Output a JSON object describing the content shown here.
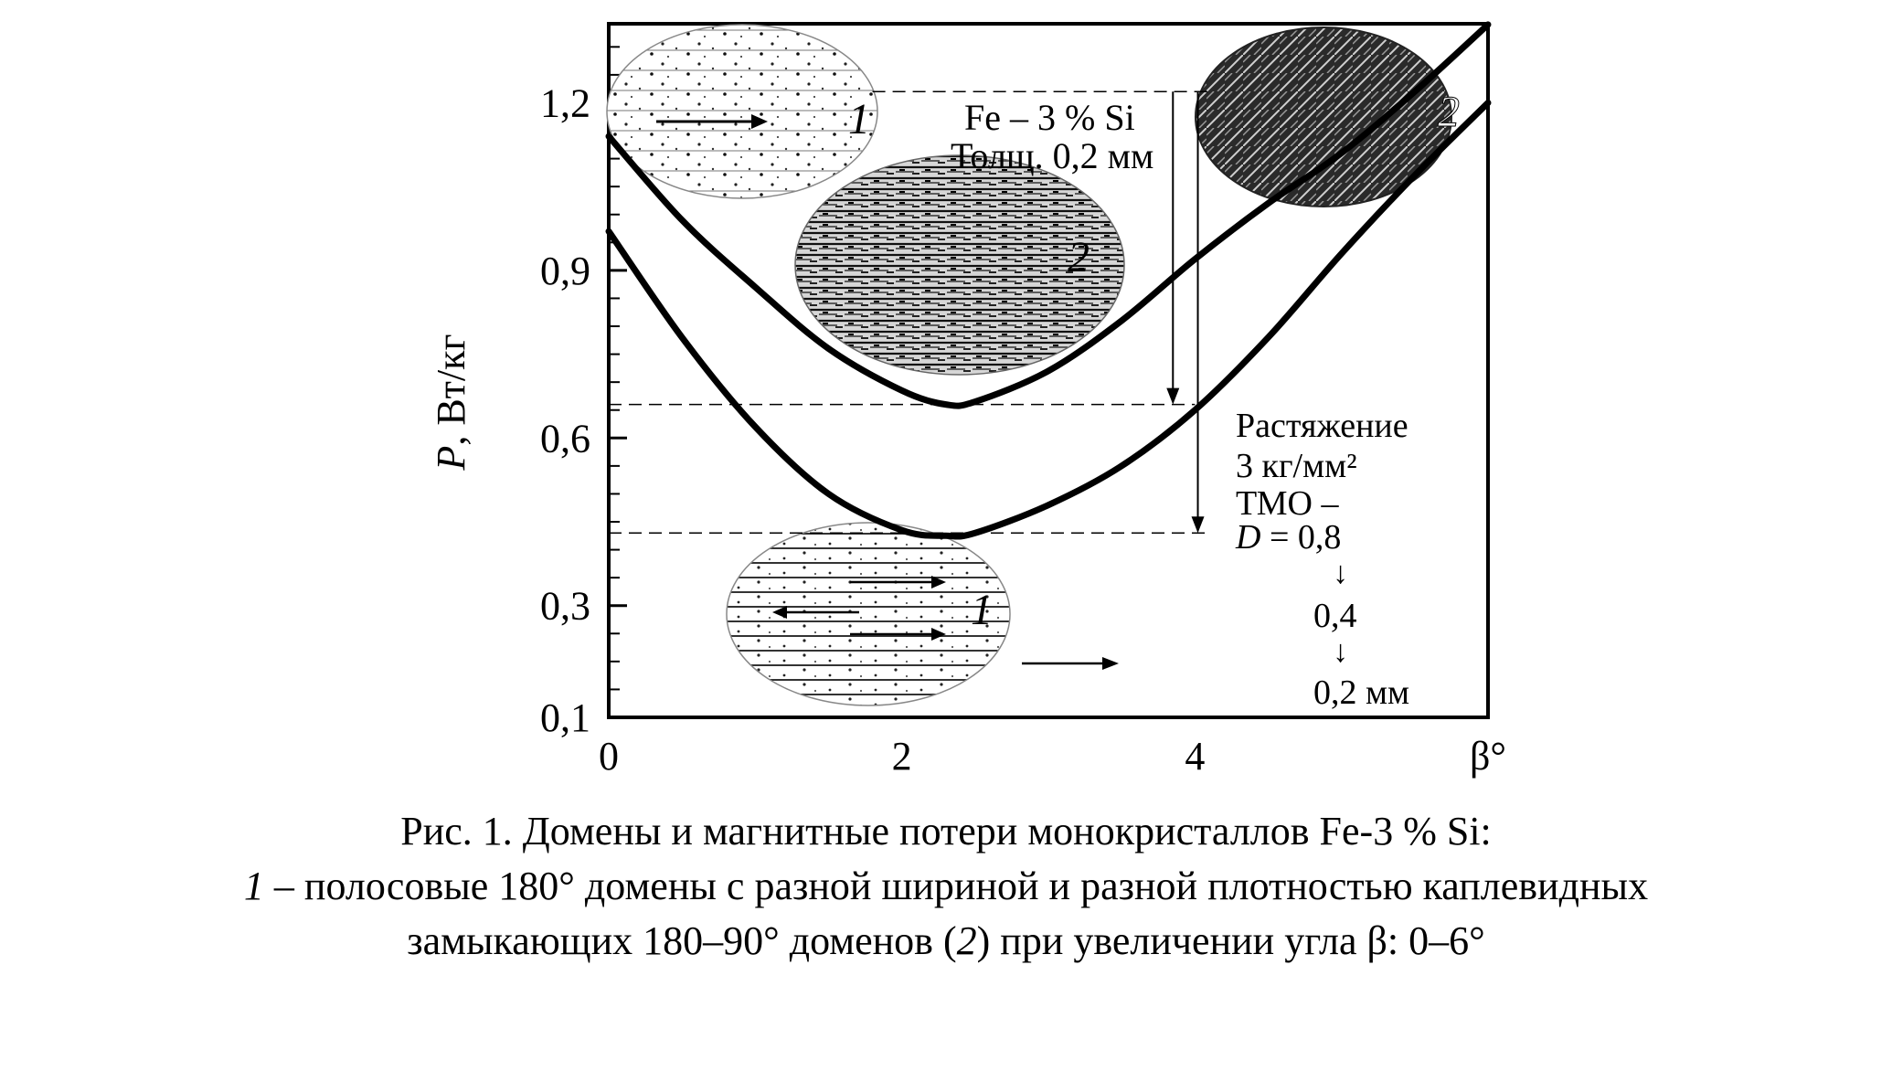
{
  "chart_data": {
    "type": "line",
    "xlabel": "β°",
    "ylabel_var": "P",
    "ylabel_unit": ", Вт/кг",
    "xlim": [
      0,
      6
    ],
    "ylim": [
      0.1,
      1.35
    ],
    "x_ticks": [
      {
        "value": 0,
        "label": "0"
      },
      {
        "value": 2,
        "label": "2"
      },
      {
        "value": 4,
        "label": "4"
      },
      {
        "value": 6,
        "label": "β°"
      }
    ],
    "y_ticks": [
      {
        "value": 0.1,
        "label": "0,1"
      },
      {
        "value": 0.3,
        "label": "0,3"
      },
      {
        "value": 0.6,
        "label": "0,6"
      },
      {
        "value": 0.9,
        "label": "0,9"
      },
      {
        "value": 1.2,
        "label": "1,2"
      }
    ],
    "series": [
      {
        "x": [
          0,
          0.5,
          1,
          1.5,
          2,
          2.3,
          2.5,
          3,
          3.5,
          4,
          4.5,
          5,
          5.5,
          6
        ],
        "y": [
          1.14,
          0.99,
          0.87,
          0.76,
          0.685,
          0.66,
          0.665,
          0.72,
          0.81,
          0.92,
          1.02,
          1.11,
          1.22,
          1.34
        ]
      },
      {
        "x": [
          0,
          0.5,
          1,
          1.5,
          2,
          2.3,
          2.5,
          3,
          3.5,
          4,
          4.5,
          5,
          5.5,
          6
        ],
        "y": [
          0.97,
          0.78,
          0.62,
          0.5,
          0.435,
          0.425,
          0.43,
          0.48,
          0.55,
          0.65,
          0.78,
          0.93,
          1.07,
          1.2
        ]
      }
    ],
    "ref_lines": [
      {
        "y": 1.22,
        "x_from": 1.8,
        "x_to": 4.1
      },
      {
        "y": 0.66,
        "x_from": 0,
        "x_to": 4.0
      },
      {
        "y": 0.43,
        "x_from": 0,
        "x_to": 4.1
      }
    ],
    "drops": [
      {
        "x": 3.85,
        "y_from": 1.22,
        "y_to": 0.66
      },
      {
        "x": 4.02,
        "y_from": 1.22,
        "y_to": 0.43
      }
    ],
    "annotations": {
      "material_line1": "Fe – 3 % Si",
      "material_line2": "Толщ. 0,2 мм",
      "tension_line1": "Растяжение",
      "tension_line2": "3 кг/мм²",
      "tmo": "ТМО –",
      "d_var": "D",
      "d_val": " = 0,8",
      "step_arrow": "↓",
      "d_val2": "0,4",
      "d_val3": "0,2 мм",
      "inset_top_left_label": "1",
      "inset_mid_label": "2",
      "inset_top_right_label": "2",
      "inset_bottom_label": "1"
    }
  },
  "caption": {
    "line1": "Рис. 1. Домены и магнитные потери монокристаллов Fe-3 % Si:",
    "line2_num": "1",
    "line2_rest": " – полосовые 180° домены с разной шириной и разной плотностью каплевидных",
    "line3_pre": "замыкающих 180–90° доменов (",
    "line3_num": "2",
    "line3_post": ") при увеличении угла β: 0–6°"
  }
}
